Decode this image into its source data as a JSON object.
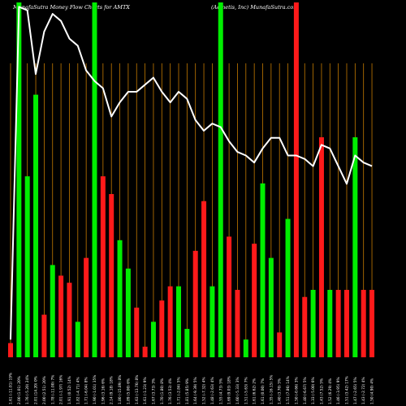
{
  "header": {
    "left": "MunafaSutra  Money Flow  Charts for AMTX",
    "right": "(Aemetis,  Inc)  MunafaSutra.com"
  },
  "chart_data": {
    "type": "bar",
    "title": "MunafaSutra Money Flow Charts for AMTX",
    "subtitle": "(Aemetis, Inc) MunafaSutra.com",
    "ylim": [
      0,
      100
    ],
    "categories": [
      "Fri 14 Feb 2025",
      "Tue 18 Feb 2025",
      "Wed 19 Feb 2025",
      "Thu 20 Feb 2025",
      "Fri 21 Feb 2025",
      "Mon 24 Feb 2025",
      "Tue 25 Feb 2025",
      "Wed 26 Feb 2025",
      "Thu 27 Feb 2025",
      "Fri 28 Feb 2025",
      "Mon 03 Mar 2025",
      "Tue 04 Mar 2025",
      "Wed 05 Mar 2025",
      "Thu 06 Mar 2025",
      "Fri 07 Mar 2025",
      "Mon 10 Mar 2025",
      "Tue 11 Mar 2025",
      "Wed 12 Mar 2025",
      "Thu 13 Mar 2025",
      "Fri 14 Mar 2025",
      "Mon 17 Mar 2025",
      "Tue 18 Mar 2025",
      "Wed 19 Mar 2025",
      "Thu 20 Mar 2025",
      "Fri 21 Mar 2025",
      "Mon 24 Mar 2025",
      "Tue 25 Mar 2025",
      "Wed 26 Mar 2025",
      "Thu 27 Mar 2025",
      "Fri 28 Mar 2025",
      "Mon 31 Mar 2025",
      "Tue 01 Apr 2025",
      "Wed 02 Apr 2025",
      "Thu 03 Apr 2025",
      "Fri 04 Apr 2025",
      "Mon 07 Apr 2025",
      "Tue 08 Apr 2025",
      "Wed 09 Apr 2025",
      "Thu 10 Apr 2025",
      "Fri 11 Apr 2025",
      "Mon 14 Apr 2025",
      "Tue 15 Apr 2025",
      "Wed 16 Apr 2025",
      "Thu 17 Apr 2025"
    ],
    "x_labels": [
      "1.61 (-11.01) 19%",
      "2.00 (1.01) 20%",
      "1.76 (-5.20) 24%",
      "2.01 (14.20) 0%",
      "2.00 (2.51) 20%",
      "1.78 (-11.00) 7%",
      "2.01 (-1.97) 16%",
      "1.91 (0.52) 14%",
      "1.82 (-4.71) 4%",
      "1.71 (-6.04) 8%",
      "1.90 (-1.01) 35%",
      "1.96 (3.16) 6%",
      "2.14 (9.18) 18%",
      "1.80 (-15.89) 8%",
      "1.89 (5.00) 6%",
      "1.63 (-13.76) 8%",
      "1.61 (-1.23) 9%",
      "1.67 (3.73) 3%",
      "1.70 (1.80) 8%",
      "1.76 (3.53) 4%",
      "1.71 (-2.84) 5%",
      "1.81 (5.85) 9%",
      "1.64 (-9.39) 5%",
      "1.52 (-7.32) 4%",
      "1.48 (-2.63) 4%",
      "1.55 (4.73) 5%",
      "1.69 (9.03) 18%",
      "1.60 (-5.33) 3%",
      "1.51 (-5.63) 7%",
      "1.61 (6.62) 2%",
      "1.61 (0.00) 7%",
      "1.35 (-16.15) 5%",
      "1.40 (3.70) 5%",
      "1.51 (7.86) 14%",
      "1.50 (-0.66) 3%",
      "1.40 (-6.67) 5%",
      "1.33 (-5.00) 6%",
      "1.43 (7.52) 5%",
      "1.52 (6.29) 4%",
      "1.46 (-3.95) 9%",
      "1.51 (3.42) 17%",
      "1.47 (-2.65) 5%",
      "1.43 (-2.72) 4%",
      "1.50 (4.90) 4%"
    ],
    "bar_colors": [
      "red",
      "green",
      "green",
      "green",
      "red",
      "green",
      "red",
      "red",
      "green",
      "red",
      "green",
      "red",
      "red",
      "green",
      "green",
      "red",
      "red",
      "green",
      "red",
      "red",
      "green",
      "green",
      "red",
      "red",
      "green",
      "green",
      "red",
      "red",
      "green",
      "red",
      "green",
      "green",
      "red",
      "green",
      "red",
      "red",
      "green",
      "red",
      "green",
      "red",
      "red",
      "green",
      "red",
      "red"
    ],
    "bar_values": [
      4,
      100,
      51,
      74,
      12,
      26,
      23,
      21,
      10,
      28,
      100,
      51,
      46,
      33,
      25,
      14,
      3,
      10,
      16,
      20,
      20,
      8,
      30,
      44,
      20,
      100,
      34,
      19,
      5,
      32,
      49,
      28,
      7,
      39,
      100,
      17,
      19,
      62,
      19,
      19,
      19,
      62,
      19,
      19
    ],
    "line_values": [
      5,
      99,
      98,
      80,
      92,
      97,
      95,
      90,
      88,
      81,
      78,
      76,
      68,
      72,
      75,
      75,
      77,
      79,
      75,
      72,
      75,
      73,
      67,
      64,
      66,
      65,
      61,
      58,
      57,
      55,
      59,
      62,
      62,
      57,
      57,
      56,
      54,
      60,
      59,
      54,
      49,
      57,
      55,
      54
    ],
    "series": [
      {
        "values": [
          5,
          99,
          98,
          80,
          92,
          97,
          95,
          90,
          88,
          81,
          78,
          76,
          68,
          72,
          75,
          75,
          77,
          79,
          75,
          72,
          75,
          73,
          67,
          64,
          66,
          65,
          61,
          58,
          57,
          55,
          59,
          62,
          62,
          57,
          57,
          56,
          54,
          60,
          59,
          54,
          49,
          57,
          55,
          54
        ]
      }
    ],
    "grid": true
  },
  "colors": {
    "background": "#000000",
    "grid": "#c47a00",
    "green": "#00ee00",
    "red": "#ff1a1a",
    "line": "#ffffff",
    "text": "#ffffff"
  }
}
